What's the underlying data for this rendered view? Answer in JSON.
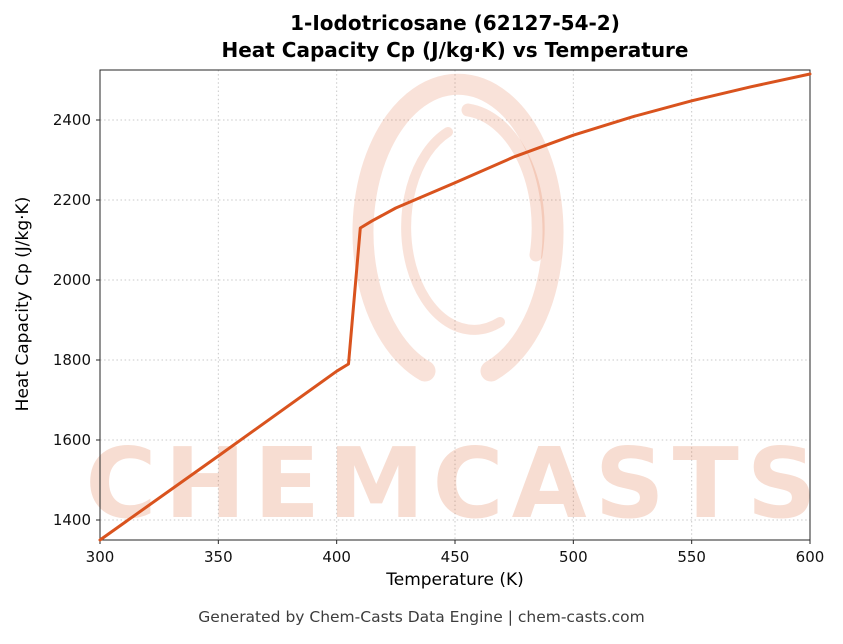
{
  "header": {
    "title_line1": "1-Iodotricosane (62127-54-2)",
    "title_line2": "Heat Capacity Cp (J/kg·K) vs Temperature"
  },
  "watermark": {
    "text": "CHEMCASTS",
    "logo": "chemcasts-swirl-logo"
  },
  "footer": {
    "text": "Generated by Chem-Casts Data Engine | chem-casts.com"
  },
  "chart_data": {
    "type": "line",
    "title": "1-Iodotricosane (62127-54-2) Heat Capacity Cp (J/kg·K) vs Temperature",
    "xlabel": "Temperature (K)",
    "ylabel": "Heat Capacity Cp (J/kg·K)",
    "xlim": [
      300,
      600
    ],
    "ylim": [
      1350,
      2525
    ],
    "xticks": [
      300,
      350,
      400,
      450,
      500,
      550,
      600
    ],
    "yticks": [
      1400,
      1600,
      1800,
      2000,
      2200,
      2400
    ],
    "grid": true,
    "legend": "none",
    "line_color": "#d9531e",
    "series": [
      {
        "name": "Heat Capacity Cp",
        "x": [
          300,
          350,
          400,
          405,
          410,
          415,
          425,
          450,
          475,
          500,
          525,
          550,
          575,
          600
        ],
        "y": [
          1350,
          1560,
          1772,
          1790,
          2130,
          2148,
          2180,
          2243,
          2308,
          2362,
          2408,
          2448,
          2483,
          2515
        ]
      }
    ],
    "annotations": [
      "sharp step increase between 405 K and 410 K (phase transition)"
    ]
  }
}
